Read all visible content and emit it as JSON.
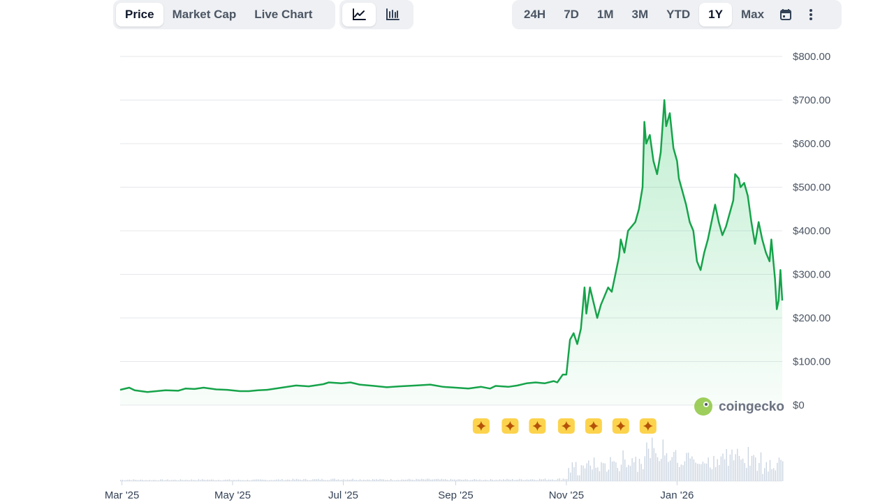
{
  "tabs": [
    {
      "label": "Price",
      "active": true
    },
    {
      "label": "Market Cap",
      "active": false
    },
    {
      "label": "Live Chart",
      "active": false
    }
  ],
  "chart_types": [
    {
      "icon": "line-chart-icon",
      "active": true
    },
    {
      "icon": "candlestick-chart-icon",
      "active": false
    }
  ],
  "ranges": [
    {
      "label": "24H",
      "active": false
    },
    {
      "label": "7D",
      "active": false
    },
    {
      "label": "1M",
      "active": false
    },
    {
      "label": "3M",
      "active": false
    },
    {
      "label": "YTD",
      "active": false
    },
    {
      "label": "1Y",
      "active": true
    },
    {
      "label": "Max",
      "active": false
    }
  ],
  "toolbar_icons": [
    "calendar-icon",
    "more-vertical-icon"
  ],
  "watermark": "coingecko",
  "colors": {
    "line": "#16a34a",
    "fill": "#22c55e",
    "volume": "#cbd5e1",
    "event": "#fcd34d"
  },
  "chart_data": {
    "type": "area",
    "y_ticks": [
      "$800.00",
      "$700.00",
      "$600.00",
      "$500.00",
      "$400.00",
      "$300.00",
      "$200.00",
      "$100.00",
      "$0"
    ],
    "ylim": [
      0,
      800
    ],
    "x_tick_labels": [
      "Mar '25",
      "May '25",
      "Jul '25",
      "Sep '25",
      "Nov '25",
      "Jan '26"
    ],
    "x_tick_dates": [
      "2025-03-01",
      "2025-05-01",
      "2025-07-01",
      "2025-09-01",
      "2025-11-01",
      "2026-01-01"
    ],
    "xlim": [
      "2025-02-28",
      "2026-02-28"
    ],
    "grid": true,
    "series": [
      {
        "values": [
          [
            "2025-02-28",
            35
          ],
          [
            "2025-03-05",
            40
          ],
          [
            "2025-03-08",
            34
          ],
          [
            "2025-03-15",
            30
          ],
          [
            "2025-03-25",
            34
          ],
          [
            "2025-04-01",
            33
          ],
          [
            "2025-04-05",
            38
          ],
          [
            "2025-04-10",
            37
          ],
          [
            "2025-04-15",
            40
          ],
          [
            "2025-04-22",
            36
          ],
          [
            "2025-04-28",
            35
          ],
          [
            "2025-05-05",
            32
          ],
          [
            "2025-05-10",
            32
          ],
          [
            "2025-05-15",
            34
          ],
          [
            "2025-05-20",
            35
          ],
          [
            "2025-05-28",
            40
          ],
          [
            "2025-06-05",
            45
          ],
          [
            "2025-06-12",
            43
          ],
          [
            "2025-06-20",
            48
          ],
          [
            "2025-06-23",
            52
          ],
          [
            "2025-06-30",
            50
          ],
          [
            "2025-07-05",
            52
          ],
          [
            "2025-07-10",
            47
          ],
          [
            "2025-07-18",
            44
          ],
          [
            "2025-07-25",
            41
          ],
          [
            "2025-08-01",
            43
          ],
          [
            "2025-08-10",
            45
          ],
          [
            "2025-08-18",
            47
          ],
          [
            "2025-08-25",
            42
          ],
          [
            "2025-09-01",
            40
          ],
          [
            "2025-09-08",
            38
          ],
          [
            "2025-09-15",
            42
          ],
          [
            "2025-09-20",
            38
          ],
          [
            "2025-09-23",
            44
          ],
          [
            "2025-09-30",
            42
          ],
          [
            "2025-10-05",
            45
          ],
          [
            "2025-10-10",
            50
          ],
          [
            "2025-10-15",
            52
          ],
          [
            "2025-10-20",
            50
          ],
          [
            "2025-10-25",
            55
          ],
          [
            "2025-10-27",
            52
          ],
          [
            "2025-10-30",
            70
          ],
          [
            "2025-11-01",
            70
          ],
          [
            "2025-11-03",
            150
          ],
          [
            "2025-11-05",
            165
          ],
          [
            "2025-11-07",
            140
          ],
          [
            "2025-11-09",
            175
          ],
          [
            "2025-11-11",
            270
          ],
          [
            "2025-11-12",
            210
          ],
          [
            "2025-11-14",
            270
          ],
          [
            "2025-11-16",
            235
          ],
          [
            "2025-11-18",
            200
          ],
          [
            "2025-11-20",
            230
          ],
          [
            "2025-11-22",
            250
          ],
          [
            "2025-11-24",
            270
          ],
          [
            "2025-11-26",
            260
          ],
          [
            "2025-11-28",
            300
          ],
          [
            "2025-11-30",
            340
          ],
          [
            "2025-12-01",
            380
          ],
          [
            "2025-12-03",
            350
          ],
          [
            "2025-12-05",
            400
          ],
          [
            "2025-12-07",
            410
          ],
          [
            "2025-12-09",
            420
          ],
          [
            "2025-12-11",
            450
          ],
          [
            "2025-12-13",
            500
          ],
          [
            "2025-12-14",
            650
          ],
          [
            "2025-12-15",
            600
          ],
          [
            "2025-12-17",
            620
          ],
          [
            "2025-12-19",
            560
          ],
          [
            "2025-12-21",
            530
          ],
          [
            "2025-12-23",
            580
          ],
          [
            "2025-12-25",
            700
          ],
          [
            "2025-12-26",
            640
          ],
          [
            "2025-12-28",
            670
          ],
          [
            "2025-12-30",
            590
          ],
          [
            "2026-01-01",
            560
          ],
          [
            "2026-01-02",
            520
          ],
          [
            "2026-01-04",
            490
          ],
          [
            "2026-01-06",
            460
          ],
          [
            "2026-01-08",
            420
          ],
          [
            "2026-01-10",
            400
          ],
          [
            "2026-01-12",
            330
          ],
          [
            "2026-01-14",
            310
          ],
          [
            "2026-01-16",
            350
          ],
          [
            "2026-01-18",
            380
          ],
          [
            "2026-01-20",
            420
          ],
          [
            "2026-01-22",
            460
          ],
          [
            "2026-01-24",
            420
          ],
          [
            "2026-01-26",
            390
          ],
          [
            "2026-01-28",
            410
          ],
          [
            "2026-01-30",
            440
          ],
          [
            "2026-02-01",
            470
          ],
          [
            "2026-02-02",
            530
          ],
          [
            "2026-02-04",
            520
          ],
          [
            "2026-02-05",
            500
          ],
          [
            "2026-02-07",
            510
          ],
          [
            "2026-02-09",
            480
          ],
          [
            "2026-02-11",
            420
          ],
          [
            "2026-02-13",
            370
          ],
          [
            "2026-02-15",
            420
          ],
          [
            "2026-02-17",
            380
          ],
          [
            "2026-02-19",
            350
          ],
          [
            "2026-02-21",
            330
          ],
          [
            "2026-02-22",
            380
          ],
          [
            "2026-02-24",
            290
          ],
          [
            "2026-02-25",
            220
          ],
          [
            "2026-02-26",
            240
          ],
          [
            "2026-02-27",
            310
          ],
          [
            "2026-02-28",
            240
          ]
        ]
      }
    ],
    "event_markers": [
      "2025-09-15",
      "2025-10-01",
      "2025-10-16",
      "2025-11-01",
      "2025-11-16",
      "2025-12-01",
      "2025-12-16"
    ]
  }
}
